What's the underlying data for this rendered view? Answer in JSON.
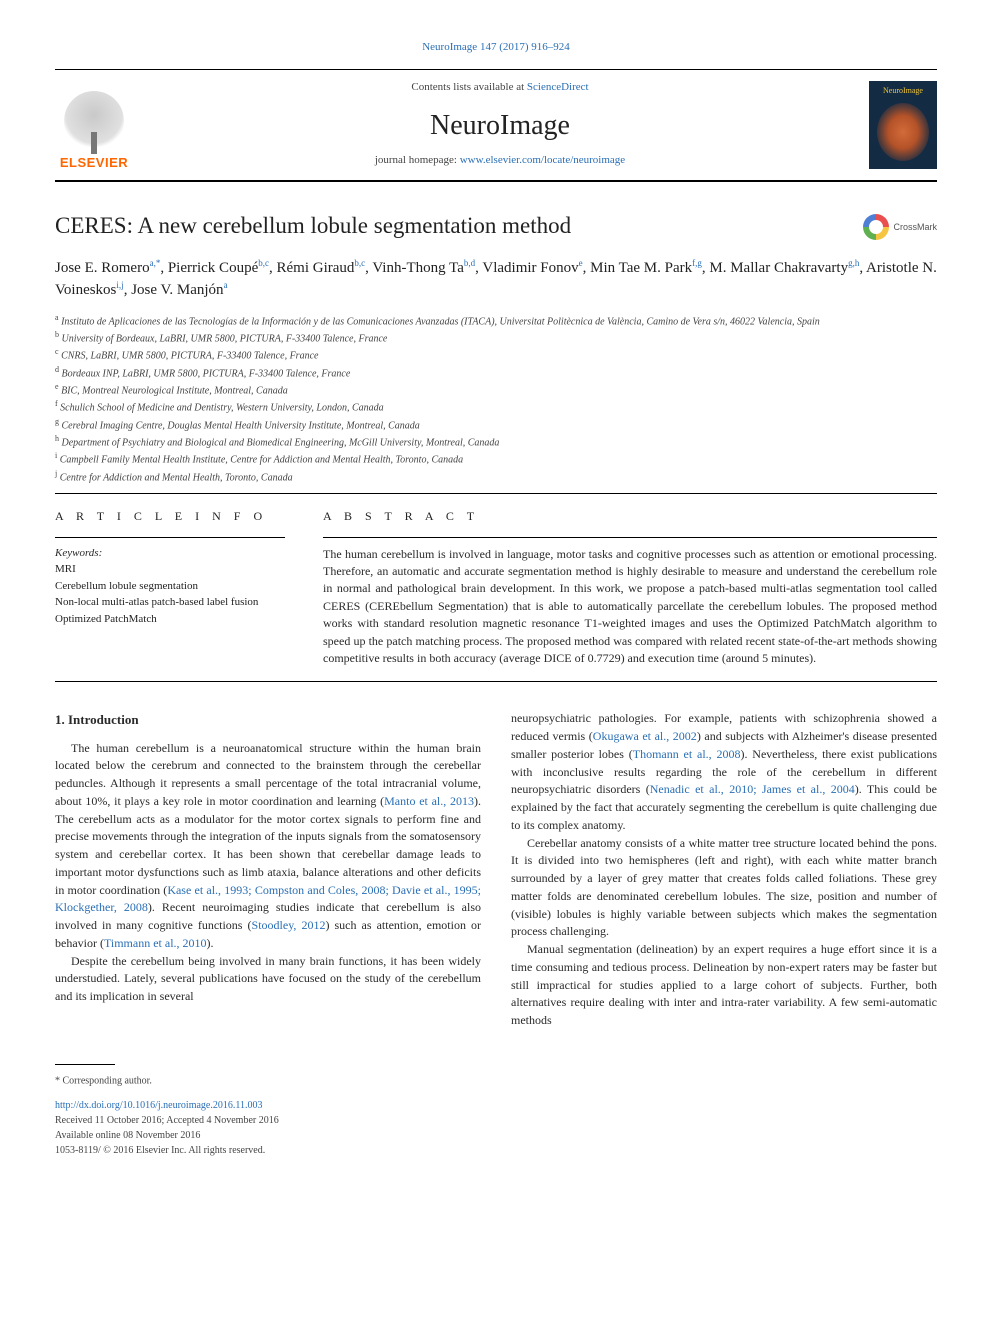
{
  "journal_ref": "NeuroImage 147 (2017) 916–924",
  "journal_ref_link_color": "#2a6fb5",
  "header": {
    "contents_text": "Contents lists available at ",
    "contents_link": "ScienceDirect",
    "journal_name": "NeuroImage",
    "homepage_label": "journal homepage: ",
    "homepage_url": "www.elsevier.com/locate/neuroimage",
    "publisher_logo_text": "ELSEVIER",
    "cover_title": "NeuroImage"
  },
  "crossmark_label": "CrossMark",
  "article_title": "CERES: A new cerebellum lobule segmentation method",
  "authors_html_parts": [
    {
      "name": "Jose E. Romero",
      "sup": "a,*"
    },
    {
      "name": "Pierrick Coupé",
      "sup": "b,c"
    },
    {
      "name": "Rémi Giraud",
      "sup": "b,c"
    },
    {
      "name": "Vinh-Thong Ta",
      "sup": "b,d"
    },
    {
      "name": "Vladimir Fonov",
      "sup": "e"
    },
    {
      "name": "Min Tae M. Park",
      "sup": "f,g"
    },
    {
      "name": "M. Mallar Chakravarty",
      "sup": "g,h"
    },
    {
      "name": "Aristotle N. Voineskos",
      "sup": "i,j"
    },
    {
      "name": "Jose V. Manjón",
      "sup": "a"
    }
  ],
  "affiliations": [
    {
      "key": "a",
      "text": "Instituto de Aplicaciones de las Tecnologías de la Información y de las Comunicaciones Avanzadas (ITACA), Universitat Politècnica de València, Camino de Vera s/n, 46022 Valencia, Spain"
    },
    {
      "key": "b",
      "text": "University of Bordeaux, LaBRI, UMR 5800, PICTURA, F-33400 Talence, France"
    },
    {
      "key": "c",
      "text": "CNRS, LaBRI, UMR 5800, PICTURA, F-33400 Talence, France"
    },
    {
      "key": "d",
      "text": "Bordeaux INP, LaBRI, UMR 5800, PICTURA, F-33400 Talence, France"
    },
    {
      "key": "e",
      "text": "BIC, Montreal Neurological Institute, Montreal, Canada"
    },
    {
      "key": "f",
      "text": "Schulich School of Medicine and Dentistry, Western University, London, Canada"
    },
    {
      "key": "g",
      "text": "Cerebral Imaging Centre, Douglas Mental Health University Institute, Montreal, Canada"
    },
    {
      "key": "h",
      "text": "Department of Psychiatry and Biological and Biomedical Engineering, McGill University, Montreal, Canada"
    },
    {
      "key": "i",
      "text": "Campbell Family Mental Health Institute, Centre for Addiction and Mental Health, Toronto, Canada"
    },
    {
      "key": "j",
      "text": "Centre for Addiction and Mental Health, Toronto, Canada"
    }
  ],
  "article_info_heading": "A R T I C L E  I N F O",
  "abstract_heading": "A B S T R A C T",
  "keywords_label": "Keywords:",
  "keywords": [
    "MRI",
    "Cerebellum lobule segmentation",
    "Non-local multi-atlas patch-based label fusion",
    "Optimized PatchMatch"
  ],
  "abstract": "The human cerebellum is involved in language, motor tasks and cognitive processes such as attention or emotional processing. Therefore, an automatic and accurate segmentation method is highly desirable to measure and understand the cerebellum role in normal and pathological brain development. In this work, we propose a patch-based multi-atlas segmentation tool called CERES (CEREbellum Segmentation) that is able to automatically parcellate the cerebellum lobules. The proposed method works with standard resolution magnetic resonance T1-weighted images and uses the Optimized PatchMatch algorithm to speed up the patch matching process. The proposed method was compared with related recent state-of-the-art methods showing competitive results in both accuracy (average DICE of 0.7729) and execution time (around 5 minutes).",
  "intro_heading": "1. Introduction",
  "intro_p1_pre": "The human cerebellum is a neuroanatomical structure within the human brain located below the cerebrum and connected to the brainstem through the cerebellar peduncles. Although it represents a small percentage of the total intracranial volume, about 10%, it plays a key role in motor coordination and learning (",
  "intro_p1_cite1": "Manto et al., 2013",
  "intro_p1_mid1": "). The cerebellum acts as a modulator for the motor cortex signals to perform fine and precise movements through the integration of the inputs signals from the somatosensory system and cerebellar cortex. It has been shown that cerebellar damage leads to important motor dysfunctions such as limb ataxia, balance alterations and other deficits in motor coordination (",
  "intro_p1_cite2": "Kase et al., 1993; Compston and Coles, 2008; Davie et al., 1995; Klockgether, 2008",
  "intro_p1_mid2": "). Recent neuroimaging studies indicate that cerebellum is also involved in many cognitive functions (",
  "intro_p1_cite3": "Stoodley, 2012",
  "intro_p1_mid3": ") such as attention, emotion or behavior (",
  "intro_p1_cite4": "Timmann et al., 2010",
  "intro_p1_post": ").",
  "intro_p2": "Despite the cerebellum being involved in many brain functions, it has been widely understudied. Lately, several publications have focused on the study of the cerebellum and its implication in several",
  "intro_p3_pre": "neuropsychiatric pathologies. For example, patients with schizophrenia showed a reduced vermis (",
  "intro_p3_cite1": "Okugawa et al., 2002",
  "intro_p3_mid1": ") and subjects with Alzheimer's disease presented smaller posterior lobes (",
  "intro_p3_cite2": "Thomann et al., 2008",
  "intro_p3_mid2": "). Nevertheless, there exist publications with inconclusive results regarding the role of the cerebellum in different neuropsychiatric disorders (",
  "intro_p3_cite3": "Nenadic et al., 2010; James et al., 2004",
  "intro_p3_post": "). This could be explained by the fact that accurately segmenting the cerebellum is quite challenging due to its complex anatomy.",
  "intro_p4": "Cerebellar anatomy consists of a white matter tree structure located behind the pons. It is divided into two hemispheres (left and right), with each white matter branch surrounded by a layer of grey matter that creates folds called foliations. These grey matter folds are denominated cerebellum lobules. The size, position and number of (visible) lobules is highly variable between subjects which makes the segmentation process challenging.",
  "intro_p5": "Manual segmentation (delineation) by an expert requires a huge effort since it is a time consuming and tedious process. Delineation by non-expert raters may be faster but still impractical for studies applied to a large cohort of subjects. Further, both alternatives require dealing with inter and intra-rater variability. A few semi-automatic methods",
  "footer": {
    "corresponding": "* Corresponding author.",
    "doi": "http://dx.doi.org/10.1016/j.neuroimage.2016.11.003",
    "received": "Received 11 October 2016; Accepted 4 November 2016",
    "available": "Available online 08 November 2016",
    "issn": "1053-8119/ © 2016 Elsevier Inc. All rights reserved."
  },
  "colors": {
    "link": "#2a6fb5",
    "text": "#2a2a2a",
    "elsevier_orange": "#ff6600",
    "rule": "#000000"
  }
}
